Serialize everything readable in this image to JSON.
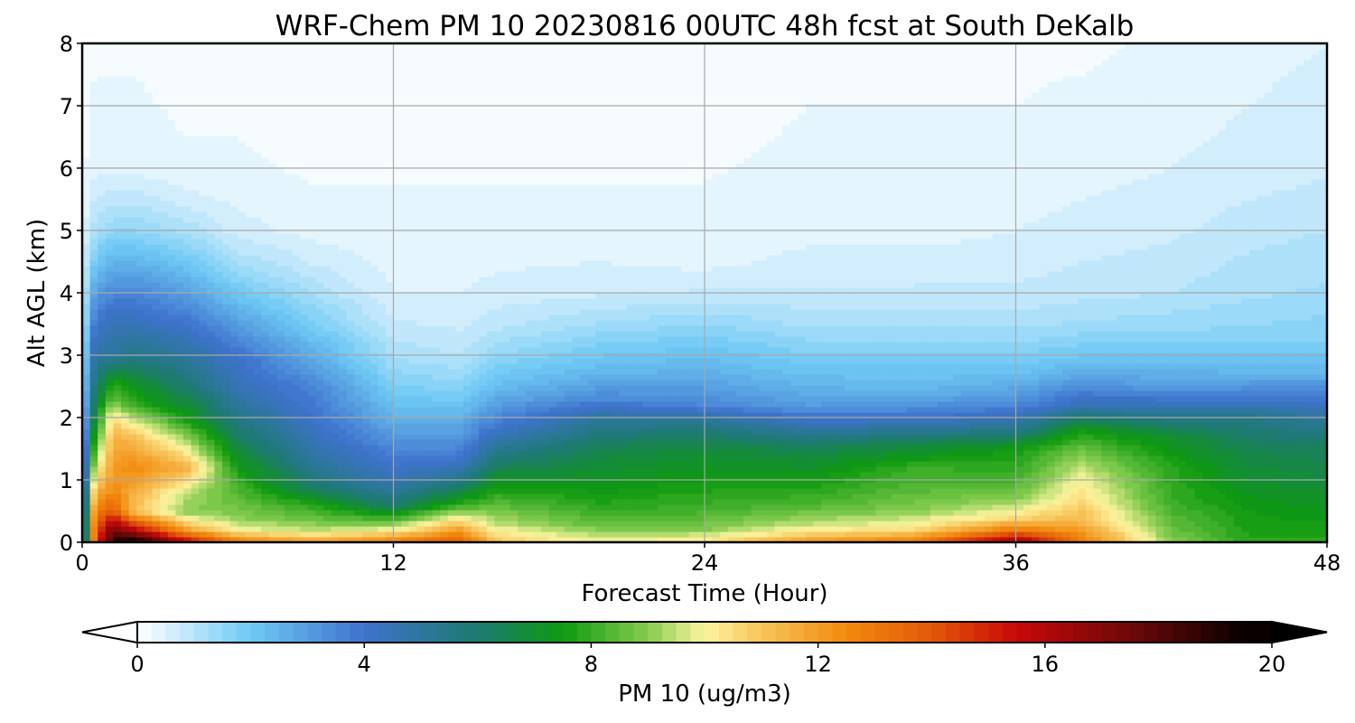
{
  "chart_data": {
    "type": "heatmap",
    "title": "WRF-Chem PM 10  20230816 00UTC 48h fcst at South DeKalb",
    "xlabel": "Forecast Time (Hour)",
    "ylabel": "Alt AGL (km)",
    "xlim": [
      0,
      48
    ],
    "ylim": [
      0,
      8
    ],
    "xticks": [
      "0",
      "12",
      "24",
      "36",
      "48"
    ],
    "yticks": [
      "0",
      "1",
      "2",
      "3",
      "4",
      "5",
      "6",
      "7",
      "8"
    ],
    "grid": true,
    "colorbar": {
      "label": "PM 10  (ug/m3)",
      "range": [
        0,
        20
      ],
      "ticks": [
        "0",
        "4",
        "8",
        "12",
        "16",
        "20"
      ],
      "extend": "both",
      "stops": [
        {
          "v": 0,
          "c": "#ffffff"
        },
        {
          "v": 2,
          "c": "#6ec9f5"
        },
        {
          "v": 4,
          "c": "#3e72cc"
        },
        {
          "v": 6,
          "c": "#1d7a70"
        },
        {
          "v": 7.5,
          "c": "#0e9a0e"
        },
        {
          "v": 9,
          "c": "#86cc50"
        },
        {
          "v": 10,
          "c": "#fdf5a0"
        },
        {
          "v": 11,
          "c": "#f7c45a"
        },
        {
          "v": 12.5,
          "c": "#f28a0c"
        },
        {
          "v": 14,
          "c": "#e2580a"
        },
        {
          "v": 15.5,
          "c": "#c80808"
        },
        {
          "v": 17.5,
          "c": "#6e0808"
        },
        {
          "v": 19.5,
          "c": "#0a0000"
        }
      ]
    },
    "profiles": [
      {
        "t": 0,
        "levels": [
          [
            0,
            3
          ],
          [
            0.5,
            3
          ],
          [
            1,
            2.6
          ],
          [
            1.5,
            2.2
          ],
          [
            2,
            1.6
          ],
          [
            2.5,
            1.2
          ],
          [
            3,
            1
          ],
          [
            3.5,
            0.8
          ],
          [
            4,
            0.6
          ],
          [
            5,
            0.3
          ],
          [
            6,
            0.2
          ],
          [
            8,
            0.1
          ]
        ]
      },
      {
        "t": 0.5,
        "levels": [
          [
            0,
            14
          ],
          [
            0.3,
            13.5
          ],
          [
            0.7,
            12
          ],
          [
            1,
            10.5
          ],
          [
            1.5,
            8.5
          ],
          [
            2,
            7
          ],
          [
            2.5,
            6
          ],
          [
            3,
            5
          ],
          [
            3.5,
            4
          ],
          [
            4,
            3
          ],
          [
            4.5,
            2
          ],
          [
            5,
            1.2
          ],
          [
            6,
            0.4
          ],
          [
            8,
            0.2
          ]
        ]
      },
      {
        "t": 1.2,
        "levels": [
          [
            0,
            19
          ],
          [
            0.2,
            17.5
          ],
          [
            0.5,
            14
          ],
          [
            0.8,
            12.5
          ],
          [
            1.2,
            12
          ],
          [
            1.7,
            11.5
          ],
          [
            2,
            10.5
          ],
          [
            2.3,
            8.5
          ],
          [
            2.6,
            7.5
          ],
          [
            3,
            5
          ],
          [
            3.5,
            4.5
          ],
          [
            4,
            3.5
          ],
          [
            4.5,
            2.5
          ],
          [
            5,
            1.5
          ],
          [
            5.5,
            0.9
          ],
          [
            6,
            0.4
          ],
          [
            8,
            0.2
          ]
        ]
      },
      {
        "t": 2,
        "levels": [
          [
            0,
            20
          ],
          [
            0.2,
            16
          ],
          [
            0.5,
            11
          ],
          [
            0.8,
            11.5
          ],
          [
            1.2,
            12.5
          ],
          [
            1.6,
            11.5
          ],
          [
            1.9,
            10
          ],
          [
            2.2,
            8
          ],
          [
            2.6,
            7
          ],
          [
            3,
            5.5
          ],
          [
            3.5,
            4.5
          ],
          [
            4,
            3.5
          ],
          [
            4.5,
            2.5
          ],
          [
            5,
            1.5
          ],
          [
            5.5,
            0.9
          ],
          [
            6,
            0.4
          ],
          [
            8,
            0.2
          ]
        ]
      },
      {
        "t": 4,
        "levels": [
          [
            0,
            16
          ],
          [
            0.2,
            12
          ],
          [
            0.5,
            9
          ],
          [
            0.8,
            9.5
          ],
          [
            1.2,
            11.5
          ],
          [
            1.6,
            9.5
          ],
          [
            2,
            7.5
          ],
          [
            2.5,
            6
          ],
          [
            3,
            5
          ],
          [
            3.5,
            4
          ],
          [
            4,
            3
          ],
          [
            4.5,
            2
          ],
          [
            5,
            1.2
          ],
          [
            5.5,
            0.6
          ],
          [
            6,
            0.3
          ],
          [
            8,
            0.1
          ]
        ]
      },
      {
        "t": 6,
        "levels": [
          [
            0,
            13
          ],
          [
            0.2,
            10
          ],
          [
            0.4,
            9
          ],
          [
            0.7,
            8.5
          ],
          [
            1,
            8
          ],
          [
            1.4,
            7
          ],
          [
            2,
            5.5
          ],
          [
            2.5,
            4.5
          ],
          [
            3,
            4
          ],
          [
            3.5,
            3
          ],
          [
            4,
            2
          ],
          [
            4.5,
            1.2
          ],
          [
            5,
            0.6
          ],
          [
            6,
            0.3
          ],
          [
            8,
            0.1
          ]
        ]
      },
      {
        "t": 9,
        "levels": [
          [
            0,
            12
          ],
          [
            0.2,
            9.5
          ],
          [
            0.4,
            8.5
          ],
          [
            0.6,
            7.8
          ],
          [
            0.9,
            6
          ],
          [
            1.3,
            5
          ],
          [
            2,
            4
          ],
          [
            2.5,
            3.5
          ],
          [
            3,
            2.6
          ],
          [
            3.5,
            1.8
          ],
          [
            4,
            1.2
          ],
          [
            4.5,
            0.7
          ],
          [
            5,
            0.4
          ],
          [
            6,
            0.2
          ],
          [
            8,
            0.1
          ]
        ]
      },
      {
        "t": 12,
        "levels": [
          [
            0,
            13
          ],
          [
            0.2,
            10
          ],
          [
            0.4,
            8
          ],
          [
            0.6,
            6
          ],
          [
            1,
            4.5
          ],
          [
            1.5,
            3.5
          ],
          [
            2,
            2.5
          ],
          [
            2.5,
            1.8
          ],
          [
            3,
            1.2
          ],
          [
            3.5,
            0.8
          ],
          [
            4,
            0.5
          ],
          [
            5,
            0.3
          ],
          [
            8,
            0.1
          ]
        ]
      },
      {
        "t": 14.5,
        "levels": [
          [
            0,
            14
          ],
          [
            0.2,
            12
          ],
          [
            0.4,
            10
          ],
          [
            0.6,
            8
          ],
          [
            0.9,
            6
          ],
          [
            1.2,
            4.5
          ],
          [
            1.5,
            3.5
          ],
          [
            2,
            2.5
          ],
          [
            2.5,
            1.6
          ],
          [
            3,
            1
          ],
          [
            3.5,
            0.7
          ],
          [
            4,
            0.5
          ],
          [
            5,
            0.3
          ],
          [
            8,
            0.1
          ]
        ]
      },
      {
        "t": 16,
        "levels": [
          [
            0,
            11
          ],
          [
            0.3,
            9.5
          ],
          [
            0.6,
            8.5
          ],
          [
            0.9,
            7.5
          ],
          [
            1.3,
            6
          ],
          [
            1.7,
            4.5
          ],
          [
            2,
            3.5
          ],
          [
            2.5,
            2.3
          ],
          [
            3,
            1.5
          ],
          [
            3.5,
            0.9
          ],
          [
            4,
            0.6
          ],
          [
            5,
            0.3
          ],
          [
            8,
            0.1
          ]
        ]
      },
      {
        "t": 20,
        "levels": [
          [
            0,
            10
          ],
          [
            0.3,
            8.5
          ],
          [
            0.6,
            7.8
          ],
          [
            1,
            7.2
          ],
          [
            1.5,
            6.5
          ],
          [
            2,
            5
          ],
          [
            2.3,
            3.5
          ],
          [
            2.7,
            2.5
          ],
          [
            3,
            2
          ],
          [
            3.5,
            1.3
          ],
          [
            4,
            0.7
          ],
          [
            5,
            0.3
          ],
          [
            8,
            0.1
          ]
        ]
      },
      {
        "t": 24,
        "levels": [
          [
            0,
            10.5
          ],
          [
            0.2,
            9
          ],
          [
            0.5,
            8.2
          ],
          [
            1,
            7.5
          ],
          [
            1.5,
            6.8
          ],
          [
            1.9,
            5.5
          ],
          [
            2.2,
            3.5
          ],
          [
            2.7,
            2.6
          ],
          [
            3,
            2.2
          ],
          [
            3.5,
            1.5
          ],
          [
            4,
            0.8
          ],
          [
            4.5,
            0.4
          ],
          [
            5,
            0.3
          ],
          [
            8,
            0.1
          ]
        ]
      },
      {
        "t": 28,
        "levels": [
          [
            0,
            12.5
          ],
          [
            0.1,
            11
          ],
          [
            0.3,
            9.5
          ],
          [
            0.6,
            8.3
          ],
          [
            1,
            7.5
          ],
          [
            1.5,
            6.5
          ],
          [
            1.8,
            5
          ],
          [
            2.2,
            3
          ],
          [
            2.7,
            2.2
          ],
          [
            3,
            1.8
          ],
          [
            3.5,
            1.2
          ],
          [
            4,
            0.8
          ],
          [
            5,
            0.4
          ],
          [
            6,
            0.3
          ],
          [
            8,
            0.2
          ]
        ]
      },
      {
        "t": 32,
        "levels": [
          [
            0,
            13
          ],
          [
            0.2,
            10.5
          ],
          [
            0.5,
            9
          ],
          [
            0.8,
            8.5
          ],
          [
            1.2,
            8
          ],
          [
            1.6,
            6.5
          ],
          [
            2,
            4
          ],
          [
            2.4,
            2.5
          ],
          [
            3,
            1.8
          ],
          [
            3.5,
            1.2
          ],
          [
            4,
            0.8
          ],
          [
            5,
            0.4
          ],
          [
            6,
            0.3
          ],
          [
            8,
            0.2
          ]
        ]
      },
      {
        "t": 36,
        "levels": [
          [
            0,
            17
          ],
          [
            0.2,
            13
          ],
          [
            0.4,
            10.5
          ],
          [
            0.7,
            9
          ],
          [
            1,
            8.2
          ],
          [
            1.5,
            7.5
          ],
          [
            1.8,
            5.5
          ],
          [
            2.2,
            3.5
          ],
          [
            2.7,
            2.2
          ],
          [
            3.2,
            1.5
          ],
          [
            3.7,
            1
          ],
          [
            4.5,
            0.6
          ],
          [
            6,
            0.3
          ],
          [
            8,
            0.2
          ]
        ]
      },
      {
        "t": 38.5,
        "levels": [
          [
            0,
            13
          ],
          [
            0.3,
            11.5
          ],
          [
            0.7,
            10.5
          ],
          [
            1,
            10
          ],
          [
            1.4,
            9
          ],
          [
            1.8,
            7.5
          ],
          [
            2.2,
            4.5
          ],
          [
            2.6,
            3
          ],
          [
            3,
            2
          ],
          [
            3.5,
            1.3
          ],
          [
            4,
            0.9
          ],
          [
            5,
            0.6
          ],
          [
            6,
            0.4
          ],
          [
            8,
            0.2
          ]
        ]
      },
      {
        "t": 42,
        "levels": [
          [
            0,
            9
          ],
          [
            0.3,
            8.5
          ],
          [
            0.7,
            8
          ],
          [
            1.2,
            7.8
          ],
          [
            1.7,
            7
          ],
          [
            2.1,
            5
          ],
          [
            2.5,
            3
          ],
          [
            3,
            2
          ],
          [
            3.5,
            1.4
          ],
          [
            4,
            1
          ],
          [
            5,
            0.7
          ],
          [
            6,
            0.5
          ],
          [
            8,
            0.3
          ]
        ]
      },
      {
        "t": 45,
        "levels": [
          [
            0,
            7.8
          ],
          [
            0.5,
            7.5
          ],
          [
            1,
            7
          ],
          [
            1.5,
            6.5
          ],
          [
            2,
            5.5
          ],
          [
            2.4,
            3.5
          ],
          [
            2.8,
            2.3
          ],
          [
            3.3,
            1.6
          ],
          [
            4,
            1.2
          ],
          [
            5,
            0.9
          ],
          [
            6,
            0.6
          ],
          [
            8,
            0.4
          ]
        ]
      },
      {
        "t": 48,
        "levels": [
          [
            0,
            7.8
          ],
          [
            0.5,
            7.3
          ],
          [
            1,
            6.8
          ],
          [
            1.5,
            6.3
          ],
          [
            2,
            5
          ],
          [
            2.4,
            3.5
          ],
          [
            2.8,
            2.3
          ],
          [
            3.3,
            1.7
          ],
          [
            4,
            1.3
          ],
          [
            5,
            1
          ],
          [
            6,
            0.7
          ],
          [
            8,
            0.5
          ]
        ]
      }
    ]
  }
}
